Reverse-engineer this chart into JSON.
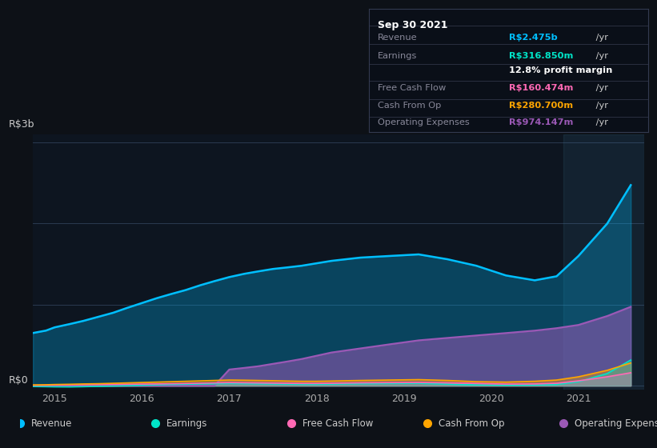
{
  "bg_color": "#0d1117",
  "plot_bg_color": "#0d1520",
  "y_label_top": "R$3b",
  "y_label_bottom": "R$0",
  "x_ticks": [
    2015,
    2016,
    2017,
    2018,
    2019,
    2020,
    2021
  ],
  "colors": {
    "revenue": "#00bfff",
    "earnings": "#00e5c8",
    "free_cash_flow": "#ff69b4",
    "cash_from_op": "#ffa500",
    "operating_expenses": "#9b59b6"
  },
  "legend": [
    {
      "label": "Revenue",
      "color": "#00bfff"
    },
    {
      "label": "Earnings",
      "color": "#00e5c8"
    },
    {
      "label": "Free Cash Flow",
      "color": "#ff69b4"
    },
    {
      "label": "Cash From Op",
      "color": "#ffa500"
    },
    {
      "label": "Operating Expenses",
      "color": "#9b59b6"
    }
  ],
  "info_box": {
    "title": "Sep 30 2021",
    "rows": [
      {
        "label": "Revenue",
        "value": "R$2.475b",
        "value_color": "#00bfff",
        "unit": " /yr",
        "extra": null
      },
      {
        "label": "Earnings",
        "value": "R$316.850m",
        "value_color": "#00e5c8",
        "unit": " /yr",
        "extra": "12.8% profit margin"
      },
      {
        "label": "Free Cash Flow",
        "value": "R$160.474m",
        "value_color": "#ff69b4",
        "unit": " /yr",
        "extra": null
      },
      {
        "label": "Cash From Op",
        "value": "R$280.700m",
        "value_color": "#ffa500",
        "unit": " /yr",
        "extra": null
      },
      {
        "label": "Operating Expenses",
        "value": "R$974.147m",
        "value_color": "#9b59b6",
        "unit": " /yr",
        "extra": null
      }
    ]
  },
  "x_data": [
    2014.75,
    2014.9,
    2015.0,
    2015.17,
    2015.33,
    2015.5,
    2015.67,
    2015.83,
    2016.0,
    2016.17,
    2016.33,
    2016.5,
    2016.67,
    2016.83,
    2017.0,
    2017.17,
    2017.33,
    2017.5,
    2017.67,
    2017.83,
    2018.0,
    2018.17,
    2018.5,
    2018.83,
    2019.17,
    2019.5,
    2019.83,
    2020.17,
    2020.5,
    2020.75,
    2021.0,
    2021.33,
    2021.6
  ],
  "revenue2": [
    650,
    680,
    720,
    760,
    800,
    850,
    900,
    960,
    1020,
    1080,
    1130,
    1180,
    1240,
    1290,
    1340,
    1380,
    1410,
    1440,
    1460,
    1480,
    1510,
    1540,
    1580,
    1600,
    1620,
    1560,
    1480,
    1360,
    1300,
    1350,
    1600,
    2000,
    2475
  ],
  "earnings2": [
    -10,
    -12,
    -14,
    -15,
    -12,
    -8,
    -4,
    0,
    5,
    10,
    15,
    18,
    22,
    25,
    28,
    26,
    24,
    22,
    20,
    18,
    18,
    20,
    25,
    28,
    30,
    20,
    10,
    5,
    8,
    15,
    50,
    150,
    317
  ],
  "free_cash_flow2": [
    5,
    6,
    8,
    10,
    12,
    14,
    16,
    18,
    20,
    22,
    25,
    28,
    32,
    35,
    38,
    36,
    34,
    32,
    30,
    28,
    28,
    30,
    35,
    38,
    40,
    35,
    28,
    20,
    22,
    30,
    60,
    110,
    160
  ],
  "cash_from_op2": [
    10,
    12,
    15,
    18,
    22,
    25,
    30,
    35,
    40,
    45,
    50,
    55,
    60,
    65,
    70,
    68,
    65,
    62,
    58,
    55,
    55,
    58,
    65,
    70,
    75,
    65,
    50,
    45,
    55,
    70,
    110,
    190,
    281
  ],
  "operating_expenses2": [
    0,
    0,
    0,
    0,
    0,
    0,
    0,
    0,
    0,
    0,
    0,
    0,
    0,
    0,
    200,
    220,
    240,
    270,
    300,
    330,
    370,
    410,
    460,
    510,
    560,
    590,
    620,
    650,
    680,
    710,
    750,
    860,
    974
  ]
}
